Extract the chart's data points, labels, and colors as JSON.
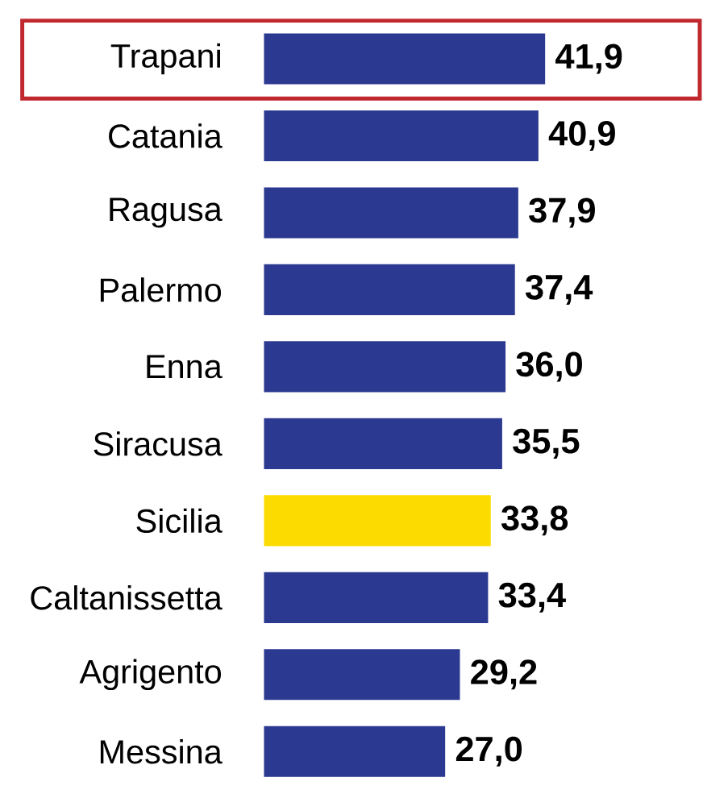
{
  "chart_data": {
    "type": "bar",
    "orientation": "horizontal",
    "categories": [
      "Trapani",
      "Catania",
      "Ragusa",
      "Palermo",
      "Enna",
      "Siracusa",
      "Sicilia",
      "Caltanissetta",
      "Agrigento",
      "Messina"
    ],
    "values": [
      41.9,
      40.9,
      37.9,
      37.4,
      36.0,
      35.5,
      33.8,
      33.4,
      29.2,
      27.0
    ],
    "colors": [
      "#2b3990",
      "#2b3990",
      "#2b3990",
      "#2b3990",
      "#2b3990",
      "#2b3990",
      "#fcdc00",
      "#2b3990",
      "#2b3990",
      "#2b3990"
    ],
    "value_labels": [
      "41,9",
      "40,9",
      "37,9",
      "37,4",
      "36,0",
      "35,5",
      "33,8",
      "33,4",
      "29,2",
      "27,0"
    ]
  }
}
